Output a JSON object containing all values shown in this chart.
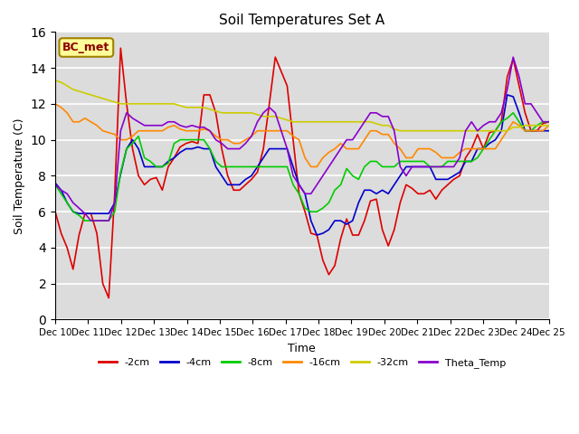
{
  "title": "Soil Temperatures Set A",
  "xlabel": "Time",
  "ylabel": "Soil Temperature (C)",
  "ylim": [
    0,
    16
  ],
  "yticks": [
    0,
    2,
    4,
    6,
    8,
    10,
    12,
    14,
    16
  ],
  "bg_color": "#dcdcdc",
  "annotation_text": "BC_met",
  "annotation_color": "#8b0000",
  "annotation_bg": "#ffff99",
  "series_colors": {
    "-2cm": "#dd0000",
    "-4cm": "#0000cc",
    "-8cm": "#00cc00",
    "-16cm": "#ff8800",
    "-32cm": "#cccc00",
    "Theta_Temp": "#8800cc"
  },
  "x_labels": [
    "Dec 10",
    "Dec 11",
    "Dec 12",
    "Dec 13",
    "Dec 14",
    "Dec 15",
    "Dec 16",
    "Dec 17",
    "Dec 18",
    "Dec 19",
    "Dec 20",
    "Dec 21",
    "Dec 22",
    "Dec 23",
    "Dec 24",
    "Dec 25"
  ],
  "data_2cm": [
    6.0,
    4.8,
    4.0,
    2.8,
    4.7,
    5.9,
    5.9,
    4.8,
    2.0,
    1.2,
    7.0,
    15.1,
    12.0,
    9.5,
    8.0,
    7.5,
    7.8,
    7.9,
    7.2,
    8.5,
    9.0,
    9.6,
    9.8,
    9.9,
    9.8,
    12.5,
    12.5,
    11.5,
    9.5,
    8.0,
    7.2,
    7.2,
    7.5,
    7.8,
    8.2,
    9.5,
    12.0,
    14.6,
    13.8,
    13.0,
    10.0,
    7.0,
    6.0,
    4.8,
    4.7,
    3.3,
    2.5,
    3.0,
    4.5,
    5.6,
    4.7,
    4.7,
    5.5,
    6.6,
    6.7,
    5.0,
    4.1,
    5.0,
    6.5,
    7.5,
    7.3,
    7.0,
    7.0,
    7.2,
    6.7,
    7.2,
    7.5,
    7.8,
    8.0,
    9.0,
    9.5,
    10.3,
    9.5,
    10.4,
    10.5,
    11.0,
    13.5,
    14.5,
    13.0,
    11.5,
    10.5,
    10.5,
    10.9,
    11.0
  ],
  "data_4cm": [
    7.6,
    7.2,
    6.5,
    6.0,
    5.9,
    5.9,
    5.9,
    5.9,
    5.9,
    5.9,
    6.5,
    8.1,
    9.5,
    10.0,
    9.5,
    8.5,
    8.5,
    8.5,
    8.5,
    8.8,
    9.0,
    9.3,
    9.5,
    9.5,
    9.6,
    9.5,
    9.5,
    8.5,
    8.0,
    7.5,
    7.5,
    7.5,
    7.8,
    8.0,
    8.5,
    9.0,
    9.5,
    9.5,
    9.5,
    9.5,
    8.5,
    7.5,
    7.0,
    5.5,
    4.7,
    4.8,
    5.0,
    5.5,
    5.5,
    5.3,
    5.5,
    6.5,
    7.2,
    7.2,
    7.0,
    7.2,
    7.0,
    7.5,
    8.0,
    8.5,
    8.5,
    8.5,
    8.5,
    8.5,
    7.8,
    7.8,
    7.8,
    8.0,
    8.2,
    8.8,
    8.8,
    9.5,
    9.5,
    9.8,
    10.0,
    10.5,
    12.5,
    12.4,
    11.5,
    10.5,
    10.5,
    10.5,
    10.5,
    10.5
  ],
  "data_8cm": [
    7.5,
    7.0,
    6.5,
    6.0,
    5.8,
    5.5,
    5.5,
    5.5,
    5.5,
    5.5,
    6.0,
    8.2,
    9.5,
    9.8,
    10.2,
    9.0,
    8.8,
    8.5,
    8.5,
    8.7,
    9.8,
    10.0,
    10.0,
    10.0,
    10.0,
    10.0,
    9.5,
    8.8,
    8.5,
    8.5,
    8.5,
    8.5,
    8.5,
    8.5,
    8.5,
    8.5,
    8.5,
    8.5,
    8.5,
    8.5,
    7.5,
    7.0,
    6.2,
    6.0,
    6.0,
    6.2,
    6.5,
    7.2,
    7.5,
    8.4,
    8.0,
    7.8,
    8.5,
    8.8,
    8.8,
    8.5,
    8.5,
    8.5,
    8.8,
    8.8,
    8.8,
    8.8,
    8.8,
    8.5,
    8.5,
    8.5,
    8.8,
    8.8,
    8.8,
    8.8,
    8.8,
    9.0,
    9.5,
    10.0,
    10.5,
    11.0,
    11.2,
    11.5,
    11.0,
    10.5,
    10.5,
    10.8,
    11.0,
    11.0
  ],
  "data_16cm": [
    12.0,
    11.8,
    11.5,
    11.0,
    11.0,
    11.2,
    11.0,
    10.8,
    10.5,
    10.4,
    10.3,
    10.0,
    10.0,
    10.2,
    10.5,
    10.5,
    10.5,
    10.5,
    10.5,
    10.7,
    10.8,
    10.6,
    10.5,
    10.5,
    10.5,
    10.6,
    10.5,
    10.2,
    10.0,
    10.0,
    9.8,
    9.8,
    10.0,
    10.2,
    10.5,
    10.5,
    10.5,
    10.5,
    10.5,
    10.5,
    10.2,
    10.0,
    9.0,
    8.5,
    8.5,
    9.0,
    9.3,
    9.5,
    9.8,
    9.5,
    9.5,
    9.5,
    10.0,
    10.5,
    10.5,
    10.3,
    10.3,
    9.8,
    9.5,
    9.0,
    9.0,
    9.5,
    9.5,
    9.5,
    9.3,
    9.0,
    9.0,
    9.0,
    9.3,
    9.5,
    9.5,
    9.5,
    9.5,
    9.5,
    9.5,
    10.0,
    10.5,
    11.0,
    10.8,
    10.5,
    10.5,
    10.5,
    10.5,
    10.8
  ],
  "data_32cm": [
    13.3,
    13.2,
    13.0,
    12.8,
    12.7,
    12.6,
    12.5,
    12.4,
    12.3,
    12.2,
    12.1,
    12.0,
    12.0,
    12.0,
    12.0,
    12.0,
    12.0,
    12.0,
    12.0,
    12.0,
    12.0,
    11.9,
    11.8,
    11.8,
    11.8,
    11.8,
    11.7,
    11.6,
    11.5,
    11.5,
    11.5,
    11.5,
    11.5,
    11.5,
    11.4,
    11.3,
    11.3,
    11.3,
    11.2,
    11.1,
    11.0,
    11.0,
    11.0,
    11.0,
    11.0,
    11.0,
    11.0,
    11.0,
    11.0,
    11.0,
    11.0,
    11.0,
    11.0,
    11.0,
    10.9,
    10.8,
    10.8,
    10.6,
    10.5,
    10.5,
    10.5,
    10.5,
    10.5,
    10.5,
    10.5,
    10.5,
    10.5,
    10.5,
    10.5,
    10.5,
    10.5,
    10.5,
    10.5,
    10.5,
    10.5,
    10.5,
    10.5,
    10.7,
    10.7,
    10.8,
    10.8,
    10.8,
    10.8,
    10.8
  ],
  "data_theta": [
    7.5,
    7.2,
    7.0,
    6.5,
    6.2,
    5.9,
    5.5,
    5.5,
    5.5,
    5.5,
    6.5,
    10.5,
    11.5,
    11.2,
    11.0,
    10.8,
    10.8,
    10.8,
    10.8,
    11.0,
    11.0,
    10.8,
    10.7,
    10.8,
    10.7,
    10.7,
    10.5,
    10.0,
    9.8,
    9.5,
    9.5,
    9.5,
    9.8,
    10.2,
    11.0,
    11.5,
    11.8,
    11.5,
    10.5,
    9.5,
    8.0,
    7.5,
    7.0,
    7.0,
    7.5,
    8.0,
    8.5,
    9.0,
    9.5,
    10.0,
    10.0,
    10.5,
    11.0,
    11.5,
    11.5,
    11.3,
    11.3,
    10.5,
    8.5,
    8.0,
    8.5,
    8.5,
    8.5,
    8.5,
    8.5,
    8.5,
    8.5,
    8.5,
    9.0,
    10.5,
    11.0,
    10.5,
    10.8,
    11.0,
    11.0,
    11.5,
    12.8,
    14.6,
    13.5,
    12.0,
    12.0,
    11.5,
    11.0,
    11.0
  ]
}
